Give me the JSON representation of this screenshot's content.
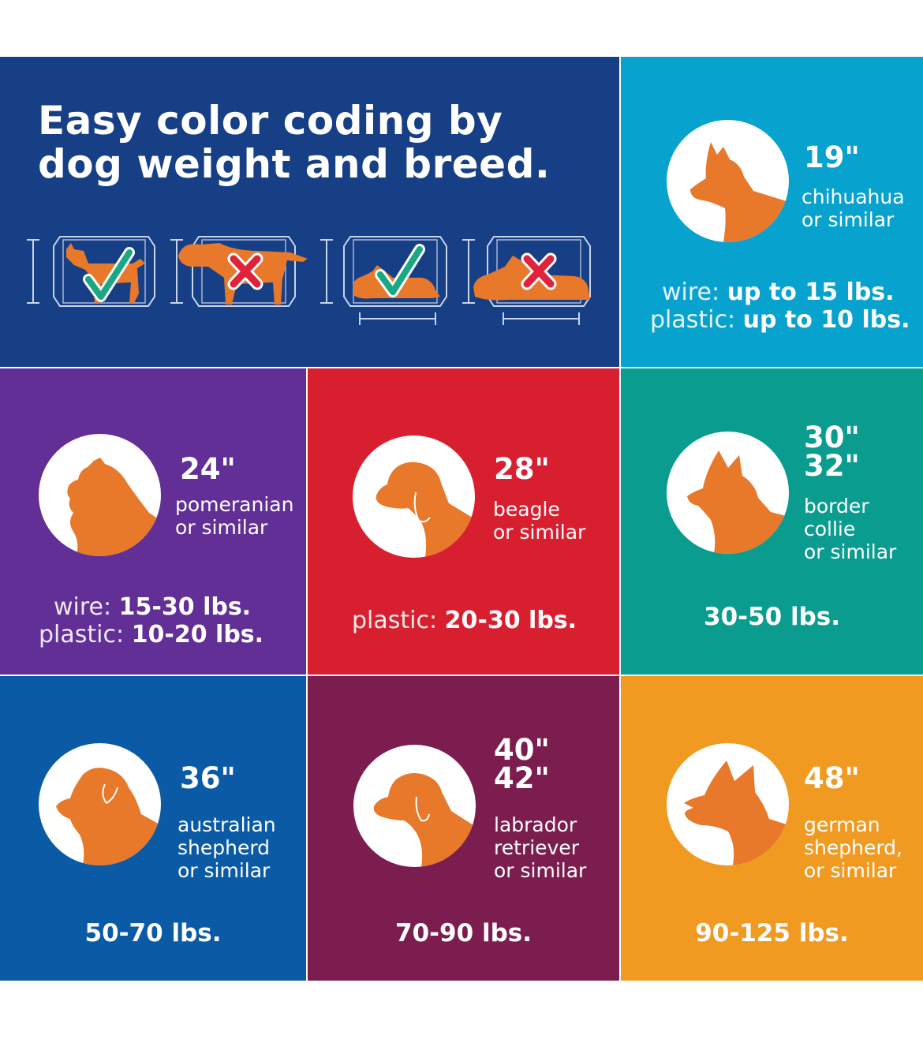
{
  "headline": "Easy color coding by dog weight and breed.",
  "crate_marks": [
    "checkmark-icon",
    "x-mark-icon",
    "checkmark-icon",
    "x-mark-icon"
  ],
  "colors": {
    "hero": "#173f86",
    "chihuahua": "#08a2cf",
    "pomeranian": "#612f96",
    "beagle": "#d81f30",
    "border_collie": "#0b9c90",
    "australian_shepherd": "#0b5aa6",
    "labrador": "#7b1e4f",
    "german_shepherd": "#f09a22",
    "dog_orange": "#e8782a",
    "check_green": "#19a882",
    "x_red": "#e0223a"
  },
  "tiles": {
    "chihuahua": {
      "size": "19\"",
      "breed": "chihuahua\nor similar",
      "wire_label": "wire:",
      "wire_value": "up to 15 lbs.",
      "plastic_label": "plastic:",
      "plastic_value": "up to 10 lbs."
    },
    "pomeranian": {
      "size": "24\"",
      "breed": "pomeranian\nor similar",
      "wire_label": "wire:",
      "wire_value": "15-30 lbs.",
      "plastic_label": "plastic:",
      "plastic_value": "10-20 lbs."
    },
    "beagle": {
      "size": "28\"",
      "breed": "beagle\nor similar",
      "plastic_label": "plastic:",
      "plastic_value": "20-30 lbs."
    },
    "border_collie": {
      "size": "30\"\n32\"",
      "breed": "border\ncollie\nor similar",
      "weight": "30-50 lbs."
    },
    "australian_shepherd": {
      "size": "36\"",
      "breed": "australian\nshepherd\nor similar",
      "weight": "50-70 lbs."
    },
    "labrador": {
      "size": "40\"\n42\"",
      "breed": "labrador\nretriever\nor similar",
      "weight": "70-90 lbs."
    },
    "german_shepherd": {
      "size": "48\"",
      "breed": "german\nshepherd,\nor similar",
      "weight": "90-125 lbs."
    }
  }
}
